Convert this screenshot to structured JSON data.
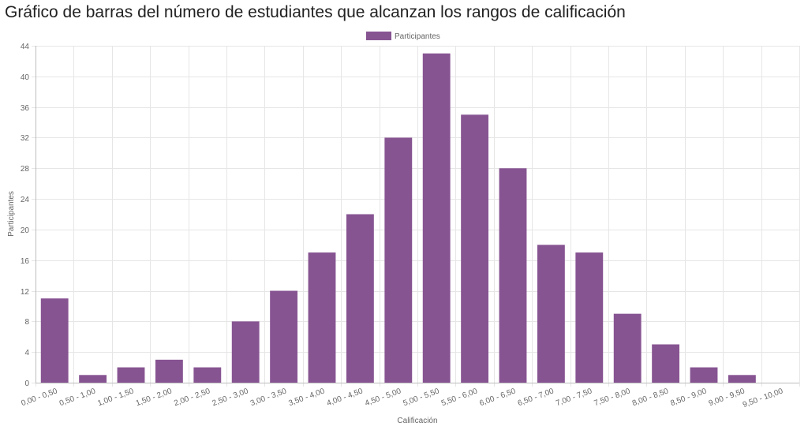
{
  "title": "Gráfico de barras del número de estudiantes que alcanzan los rangos de calificación",
  "chart_data": {
    "type": "bar",
    "title": "Gráfico de barras del número de estudiantes que alcanzan los rangos de calificación",
    "xlabel": "Calificación",
    "ylabel": "Participantes",
    "ylim": [
      0,
      44
    ],
    "yticks": [
      0,
      4,
      8,
      12,
      16,
      20,
      24,
      28,
      32,
      36,
      40,
      44
    ],
    "grid": true,
    "legend": "top-center",
    "categories": [
      "0,00 - 0,50",
      "0,50 - 1,00",
      "1,00 - 1,50",
      "1,50 - 2,00",
      "2,00 - 2,50",
      "2,50 - 3,00",
      "3,00 - 3,50",
      "3,50 - 4,00",
      "4,00 - 4,50",
      "4,50 - 5,00",
      "5,00 - 5,50",
      "5,50 - 6,00",
      "6,00 - 6,50",
      "6,50 - 7,00",
      "7,00 - 7,50",
      "7,50 - 8,00",
      "8,00 - 8,50",
      "8,50 - 9,00",
      "9,00 - 9,50",
      "9,50 - 10,00"
    ],
    "series": [
      {
        "name": "Participantes",
        "color": "#875492",
        "values": [
          11,
          1,
          2,
          3,
          2,
          8,
          12,
          17,
          22,
          32,
          43,
          35,
          28,
          18,
          17,
          9,
          5,
          2,
          1,
          0
        ]
      }
    ]
  }
}
